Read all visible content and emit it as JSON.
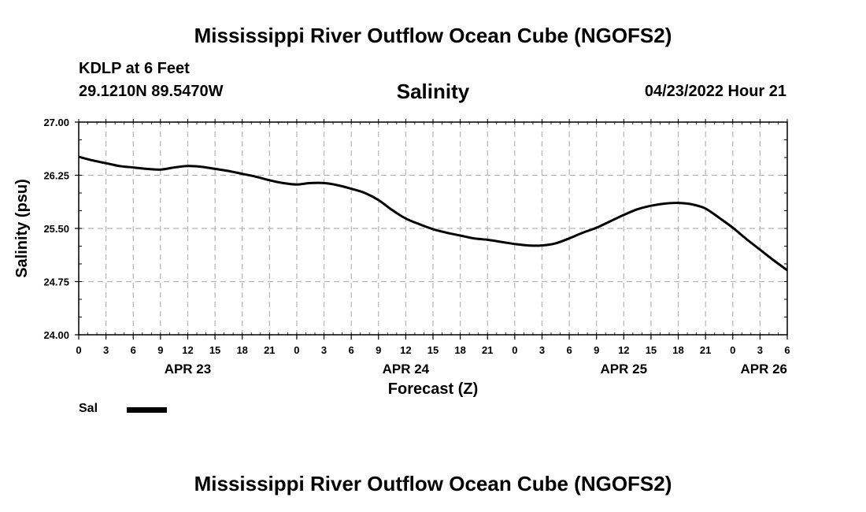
{
  "header": {
    "title": "Mississippi River Outflow Ocean Cube (NGOFS2)",
    "station_name": "KDLP at 6 Feet",
    "station_coords": "29.1210N  89.5470W",
    "variable": "Salinity",
    "run_time": "04/23/2022 Hour 21"
  },
  "footer": {
    "title": "Mississippi River Outflow Ocean Cube (NGOFS2)"
  },
  "legend": {
    "label": "Sal",
    "color": "#000000"
  },
  "chart_data": {
    "type": "line",
    "title": "Salinity",
    "xlabel": "Forecast (Z)",
    "ylabel": "Salinity (psu)",
    "ylim": [
      24.0,
      27.0
    ],
    "yticks": [
      "27.00",
      "26.25",
      "25.50",
      "24.75",
      "24.00"
    ],
    "ytick_values": [
      27.0,
      26.25,
      25.5,
      24.75,
      24.0
    ],
    "xlim": [
      0,
      78
    ],
    "xtick_labels": [
      "0",
      "3",
      "6",
      "9",
      "12",
      "15",
      "18",
      "21",
      "0",
      "3",
      "6",
      "9",
      "12",
      "15",
      "18",
      "21",
      "0",
      "3",
      "6",
      "9",
      "12",
      "15",
      "18",
      "21",
      "0",
      "3",
      "6"
    ],
    "date_labels": [
      {
        "text": "APR 23",
        "hour": 12
      },
      {
        "text": "APR 24",
        "hour": 36
      },
      {
        "text": "APR 25",
        "hour": 60
      },
      {
        "text": "APR 26",
        "hour": 78
      }
    ],
    "grid": true,
    "series": [
      {
        "name": "Sal",
        "color": "#000000",
        "x": [
          0,
          1.5,
          3,
          4.5,
          6,
          7.5,
          9,
          10.5,
          12,
          13.5,
          15,
          16.5,
          18,
          19.5,
          21,
          22.5,
          24,
          25.5,
          27,
          28.5,
          30,
          31.5,
          33,
          34.5,
          36,
          37.5,
          39,
          40.5,
          42,
          43.5,
          45,
          46.5,
          48,
          49.5,
          51,
          52.5,
          54,
          55.5,
          57,
          58.5,
          60,
          61.5,
          63,
          64.5,
          66,
          67.5,
          69,
          70.5,
          72,
          73.5,
          75,
          76.5,
          78
        ],
        "values": [
          26.51,
          26.46,
          26.42,
          26.38,
          26.36,
          26.34,
          26.33,
          26.36,
          26.38,
          26.37,
          26.34,
          26.31,
          26.27,
          26.23,
          26.18,
          26.14,
          26.12,
          26.14,
          26.14,
          26.11,
          26.06,
          26.0,
          25.9,
          25.76,
          25.64,
          25.56,
          25.49,
          25.44,
          25.4,
          25.36,
          25.34,
          25.31,
          25.28,
          25.26,
          25.26,
          25.29,
          25.36,
          25.44,
          25.51,
          25.6,
          25.69,
          25.77,
          25.82,
          25.85,
          25.86,
          25.84,
          25.78,
          25.65,
          25.51,
          25.35,
          25.2,
          25.05,
          24.91
        ]
      }
    ]
  }
}
